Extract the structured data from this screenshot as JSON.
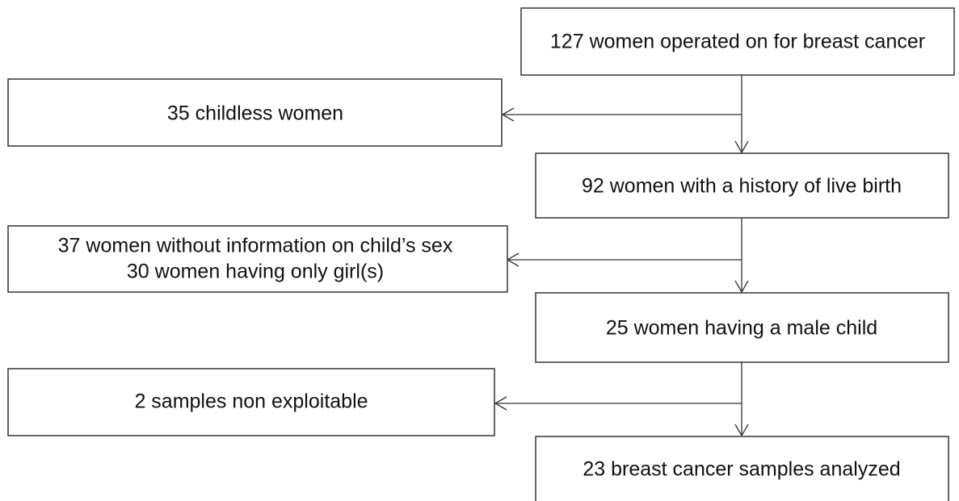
{
  "nodes": [
    {
      "label": "127 women operated on for breast cancer"
    },
    {
      "label": "35 childless women"
    },
    {
      "label": "92 women with a history of live birth"
    },
    {
      "lines": [
        "37 women without information on child’s sex",
        "30 women having only girl(s)"
      ]
    },
    {
      "label": "25 women having a male child"
    },
    {
      "label": "2 samples non exploitable"
    },
    {
      "label": "23 breast cancer samples analyzed"
    }
  ]
}
